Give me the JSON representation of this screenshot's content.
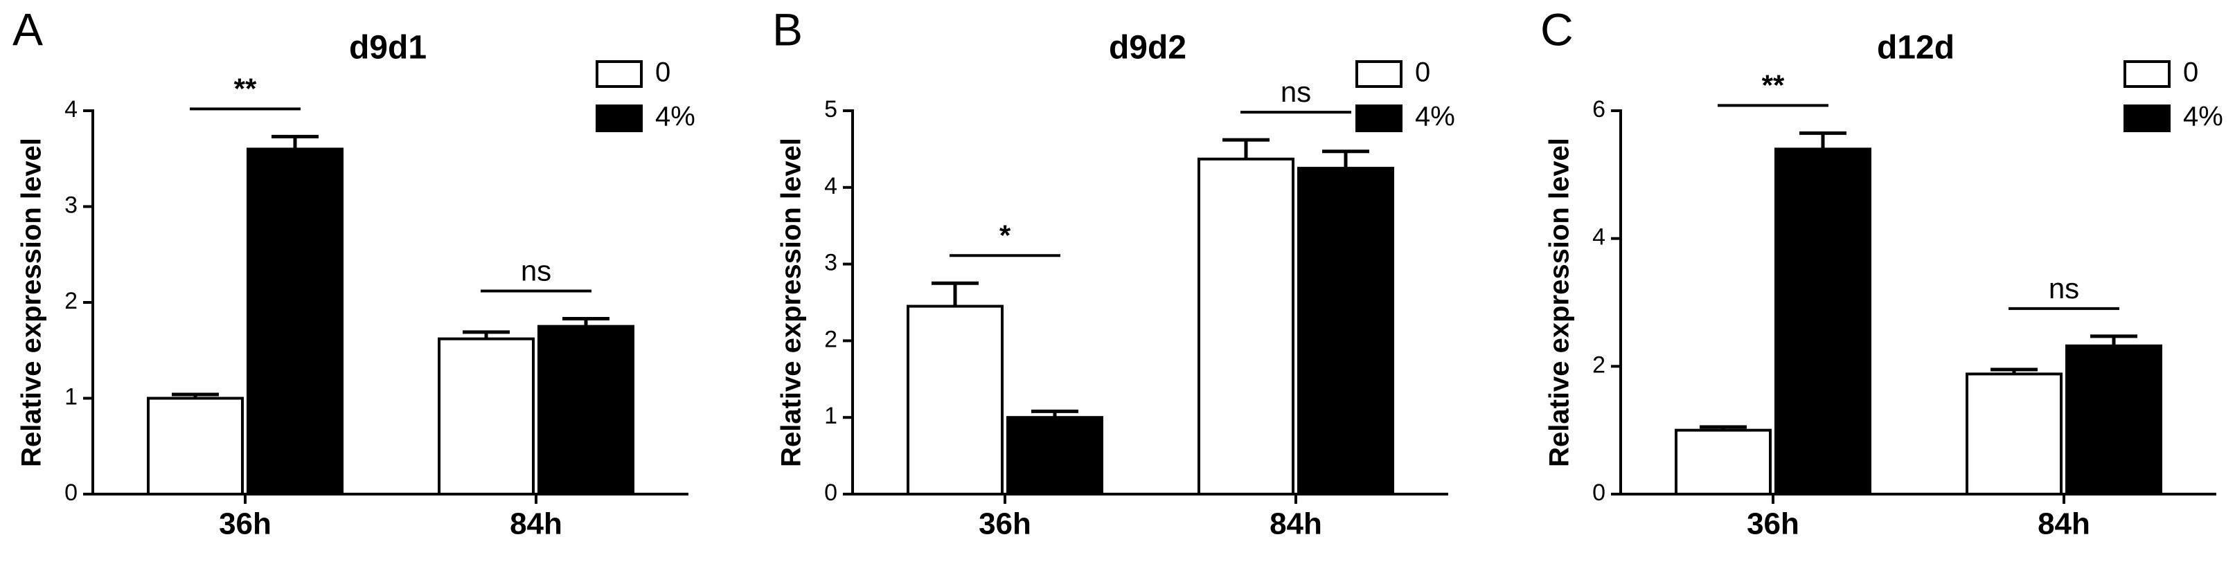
{
  "chart_data": [
    {
      "type": "bar",
      "panel": "A",
      "title": "d9d1",
      "ylabel": "Relative expression level",
      "categories": [
        "36h",
        "84h"
      ],
      "significance": [
        "**",
        "ns"
      ],
      "series": [
        {
          "name": "0",
          "color": "#ffffff",
          "values": [
            1.0,
            1.62
          ],
          "errors": [
            0.04,
            0.07
          ]
        },
        {
          "name": "4%",
          "color": "#000000",
          "values": [
            3.6,
            1.75
          ],
          "errors": [
            0.13,
            0.08
          ]
        }
      ],
      "ylim": [
        0,
        4
      ],
      "yticks": [
        0,
        1,
        2,
        3,
        4
      ]
    },
    {
      "type": "bar",
      "panel": "B",
      "title": "d9d2",
      "ylabel": "Relative expression level",
      "categories": [
        "36h",
        "84h"
      ],
      "significance": [
        "*",
        "ns"
      ],
      "series": [
        {
          "name": "0",
          "color": "#ffffff",
          "values": [
            2.45,
            4.37
          ],
          "errors": [
            0.3,
            0.25
          ]
        },
        {
          "name": "4%",
          "color": "#000000",
          "values": [
            1.0,
            4.25
          ],
          "errors": [
            0.08,
            0.22
          ]
        }
      ],
      "ylim": [
        0,
        5
      ],
      "yticks": [
        0,
        1,
        2,
        3,
        4,
        5
      ]
    },
    {
      "type": "bar",
      "panel": "C",
      "title": "d12d",
      "ylabel": "Relative expression level",
      "categories": [
        "36h",
        "84h"
      ],
      "significance": [
        "**",
        "ns"
      ],
      "series": [
        {
          "name": "0",
          "color": "#ffffff",
          "values": [
            1.0,
            1.88
          ],
          "errors": [
            0.05,
            0.07
          ]
        },
        {
          "name": "4%",
          "color": "#000000",
          "values": [
            5.4,
            2.32
          ],
          "errors": [
            0.25,
            0.15
          ]
        }
      ],
      "ylim": [
        0,
        6
      ],
      "yticks": [
        0,
        2,
        4,
        6
      ]
    }
  ]
}
